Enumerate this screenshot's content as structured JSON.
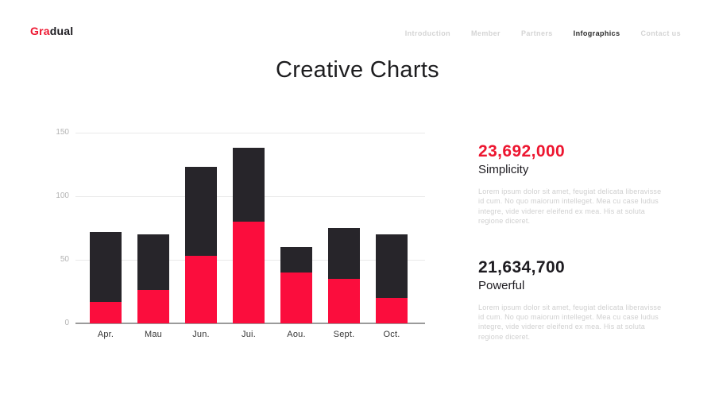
{
  "brand": {
    "logo_red": "Gra",
    "logo_black": "dual"
  },
  "nav": {
    "items": [
      {
        "label": "Introduction",
        "active": false
      },
      {
        "label": "Member",
        "active": false
      },
      {
        "label": "Partners",
        "active": false
      },
      {
        "label": "Infographics",
        "active": true
      },
      {
        "label": "Contact us",
        "active": false
      }
    ]
  },
  "title": "Creative Charts",
  "chart_data": {
    "type": "bar",
    "stacked": true,
    "categories": [
      "Apr.",
      "Mau",
      "Jun.",
      "Jui.",
      "Aou.",
      "Sept.",
      "Oct."
    ],
    "series": [
      {
        "name": "red-bottom",
        "color": "#fb0d3d",
        "values": [
          17,
          26,
          53,
          80,
          40,
          35,
          20
        ]
      },
      {
        "name": "dark-top",
        "color": "#27252a",
        "values": [
          55,
          44,
          70,
          58,
          20,
          40,
          50
        ]
      }
    ],
    "totals": [
      72,
      70,
      123,
      138,
      60,
      75,
      70
    ],
    "yticks": [
      0,
      50,
      100,
      150
    ],
    "ylim": [
      0,
      150
    ],
    "grid": true,
    "legend": false,
    "title": "",
    "xlabel": "",
    "ylabel": ""
  },
  "stats": [
    {
      "number": "23,692,000",
      "number_color": "#ed1630",
      "label": "Simplicity",
      "description": "Lorem ipsum dolor sit amet, feugiat delicata liberavisse id cum. No quo maiorum intelleget. Mea cu case ludus integre, vide viderer eleifend ex mea. His at soluta regione diceret."
    },
    {
      "number": "21,634,700",
      "number_color": "#1d1b20",
      "label": "Powerful",
      "description": "Lorem ipsum dolor sit amet, feugiat delicata liberavisse id cum. No quo maiorum intelleget. Mea cu case ludus integre, vide viderer eleifend ex mea. His at soluta regione diceret."
    }
  ],
  "colors": {
    "accent_red": "#fb0d3d",
    "dark": "#27252a",
    "axis_label_gray": "#b3b3b3",
    "grid_line": "#e9e9e9",
    "baseline": "#9b9b9b",
    "muted_text": "#cfcfcf"
  }
}
